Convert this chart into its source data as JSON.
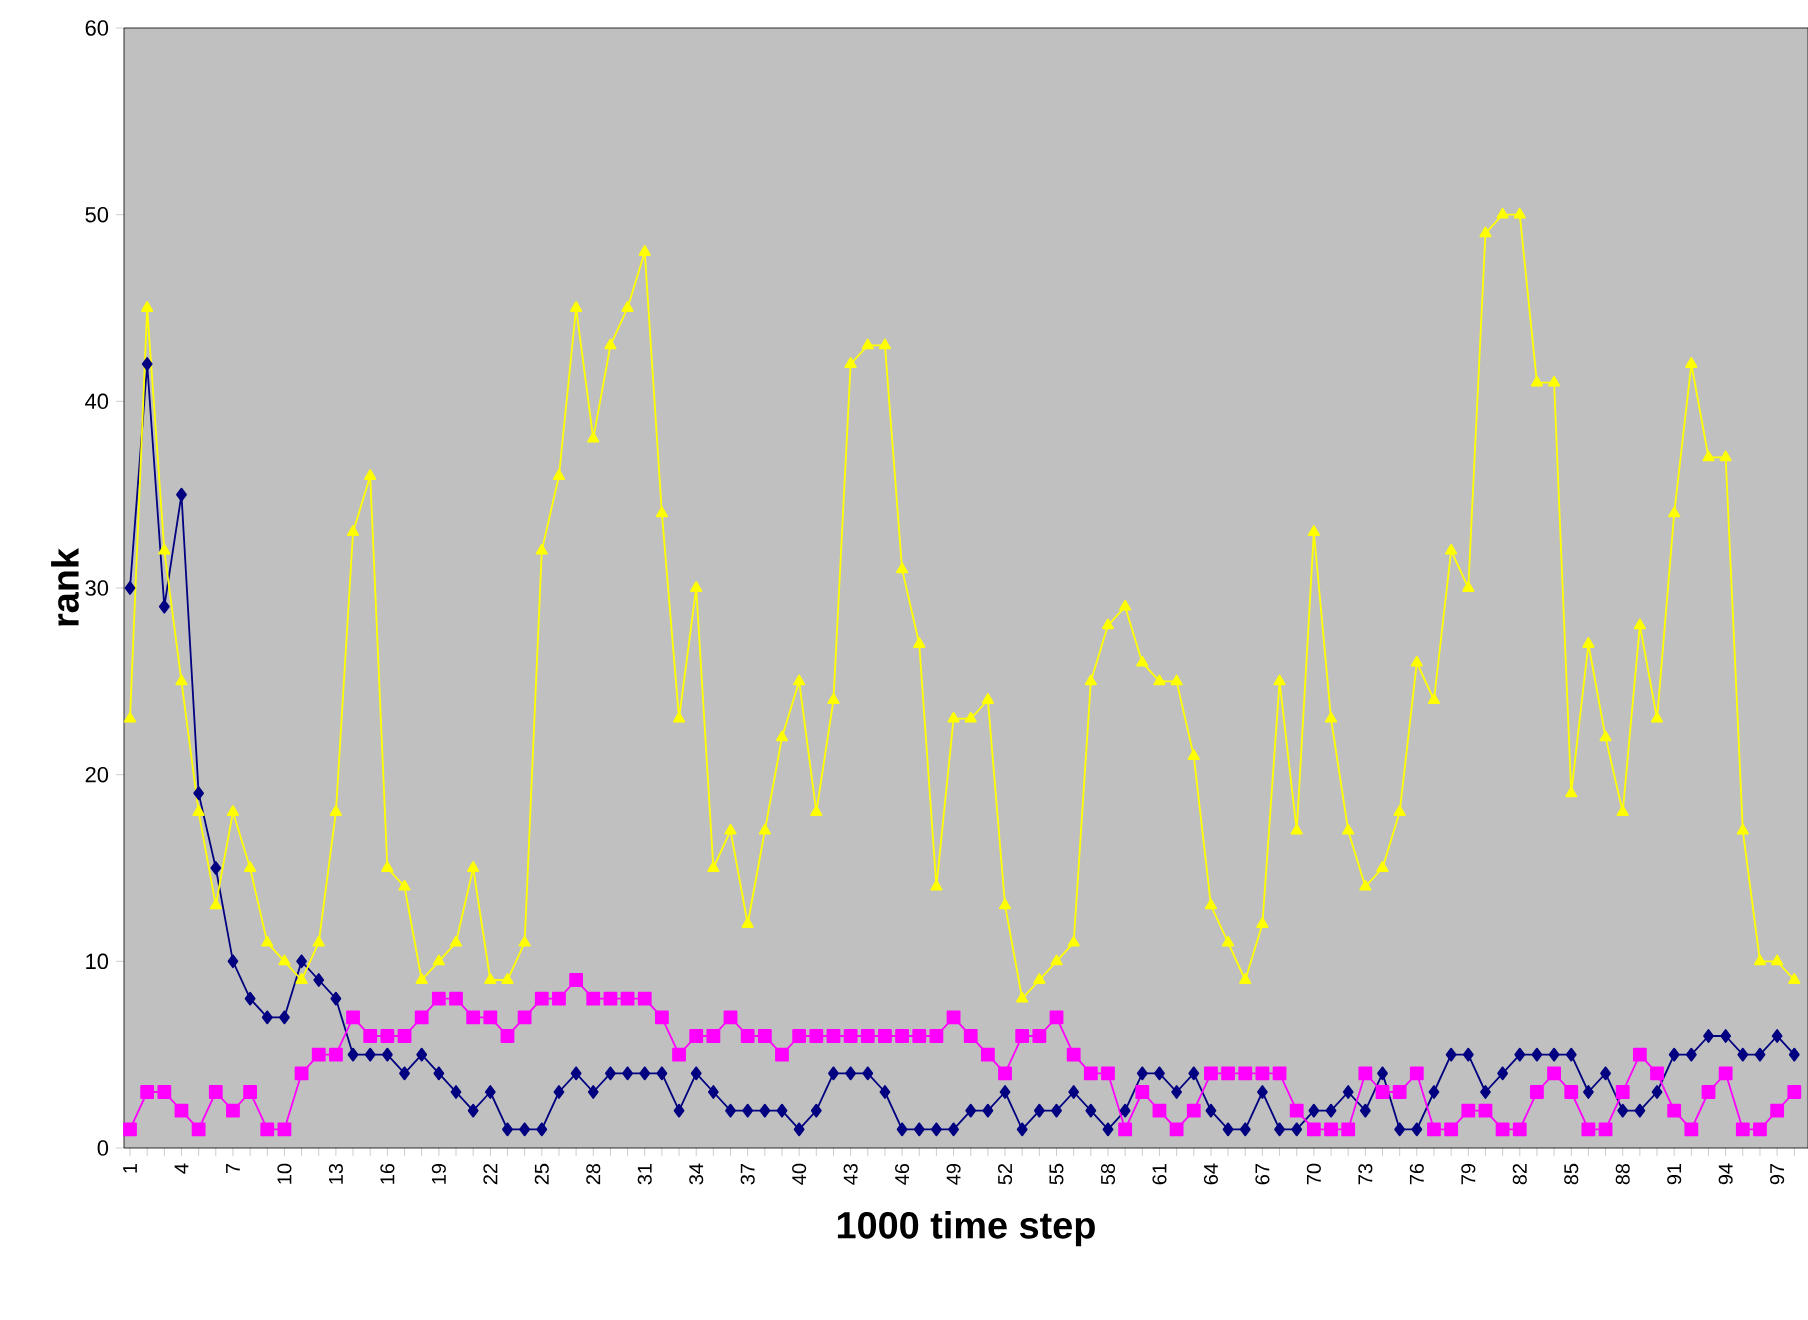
{
  "chart_data": {
    "type": "line",
    "xlabel": "1000 time step",
    "ylabel": "rank",
    "categories": [
      "1",
      null,
      null,
      "4",
      null,
      null,
      "7",
      null,
      null,
      "10",
      null,
      null,
      "13",
      null,
      null,
      "16",
      null,
      null,
      "19",
      null,
      null,
      "22",
      null,
      null,
      "25",
      null,
      null,
      "28",
      null,
      null,
      "31",
      null,
      null,
      "34",
      null,
      null,
      "37",
      null,
      null,
      "40",
      null,
      null,
      "43",
      null,
      null,
      "46",
      null,
      null,
      "49",
      null,
      null,
      "52",
      null,
      null,
      "55",
      null,
      null,
      "58",
      null,
      null,
      "61",
      null,
      null,
      "64",
      null,
      null,
      "67",
      null,
      null,
      "70",
      null,
      null,
      "73",
      null,
      null,
      "76",
      null,
      null,
      "79",
      null,
      null,
      "82",
      null,
      null,
      "85",
      null,
      null,
      "88",
      null,
      null,
      "91",
      null,
      null,
      "94",
      null,
      null,
      "97",
      null
    ],
    "series": [
      {
        "color": "#000080",
        "marker": "diamond",
        "values": [
          30,
          42,
          29,
          35,
          19,
          15,
          10,
          8,
          7,
          7,
          10,
          9,
          8,
          5,
          5,
          5,
          4,
          5,
          4,
          3,
          2,
          3,
          1,
          1,
          1,
          3,
          4,
          3,
          4,
          4,
          4,
          4,
          2,
          4,
          3,
          2,
          2,
          2,
          2,
          1,
          2,
          4,
          4,
          4,
          3,
          1,
          1,
          1,
          1,
          2,
          2,
          3,
          1,
          2,
          2,
          3,
          2,
          1,
          2,
          4,
          4,
          3,
          4,
          2,
          1,
          1,
          3,
          1,
          1,
          2,
          2,
          3,
          2,
          4,
          1,
          1,
          3,
          5,
          5,
          3,
          4,
          5,
          5,
          5,
          5,
          3,
          4,
          2,
          2,
          3,
          5,
          5,
          6,
          6,
          5,
          5,
          6,
          5
        ]
      },
      {
        "color": "#ff00ff",
        "marker": "square",
        "values": [
          1,
          3,
          3,
          2,
          1,
          3,
          2,
          3,
          1,
          1,
          4,
          5,
          5,
          7,
          6,
          6,
          6,
          7,
          8,
          8,
          7,
          7,
          6,
          7,
          8,
          8,
          9,
          8,
          8,
          8,
          8,
          7,
          5,
          6,
          6,
          7,
          6,
          6,
          5,
          6,
          6,
          6,
          6,
          6,
          6,
          6,
          6,
          6,
          7,
          6,
          5,
          4,
          6,
          6,
          7,
          5,
          4,
          4,
          1,
          3,
          2,
          1,
          2,
          4,
          4,
          4,
          4,
          4,
          2,
          1,
          1,
          1,
          4,
          3,
          3,
          4,
          1,
          1,
          2,
          2,
          1,
          1,
          3,
          4,
          3,
          1,
          1,
          3,
          5,
          4,
          2,
          1,
          3,
          4,
          1,
          1,
          2,
          3
        ]
      },
      {
        "color": "#ffff00",
        "marker": "triangle",
        "values": [
          23,
          45,
          32,
          25,
          18,
          13,
          18,
          15,
          11,
          10,
          9,
          11,
          18,
          33,
          36,
          15,
          14,
          9,
          10,
          11,
          15,
          9,
          9,
          11,
          32,
          36,
          45,
          38,
          43,
          45,
          48,
          34,
          23,
          30,
          15,
          17,
          12,
          17,
          22,
          25,
          18,
          24,
          42,
          43,
          43,
          31,
          27,
          14,
          23,
          23,
          24,
          13,
          8,
          9,
          10,
          11,
          25,
          28,
          29,
          26,
          25,
          25,
          21,
          13,
          11,
          9,
          12,
          25,
          17,
          33,
          23,
          17,
          14,
          15,
          18,
          26,
          24,
          32,
          30,
          49,
          50,
          50,
          41,
          41,
          19,
          27,
          22,
          18,
          28,
          23,
          34,
          42,
          37,
          37,
          17,
          10,
          10,
          9
        ]
      }
    ],
    "ylim": [
      0,
      60
    ],
    "yticks": [
      0,
      10,
      20,
      30,
      40,
      50,
      60
    ]
  }
}
